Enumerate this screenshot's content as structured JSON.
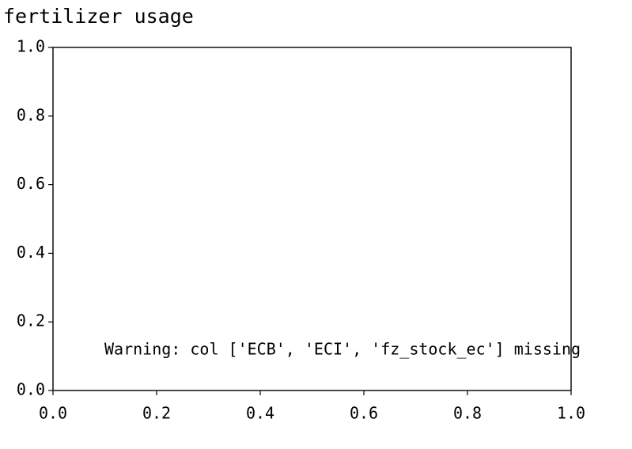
{
  "chart_data": {
    "type": "line",
    "title": "fertilizer usage",
    "annotation": "Warning: col ['ECB', 'ECI', 'fz_stock_ec'] missing",
    "xlim": [
      0,
      1
    ],
    "ylim": [
      0,
      1
    ],
    "xticks": [
      {
        "value": 0,
        "label": "0.0"
      },
      0.2,
      0.4,
      0.6,
      0.8,
      {
        "value": 1,
        "label": "1.0"
      }
    ],
    "yticks": [
      {
        "value": 0,
        "label": "0.0"
      },
      0.2,
      0.4,
      0.6,
      0.8,
      {
        "value": 1,
        "label": "1.0"
      }
    ],
    "grid": false
  }
}
